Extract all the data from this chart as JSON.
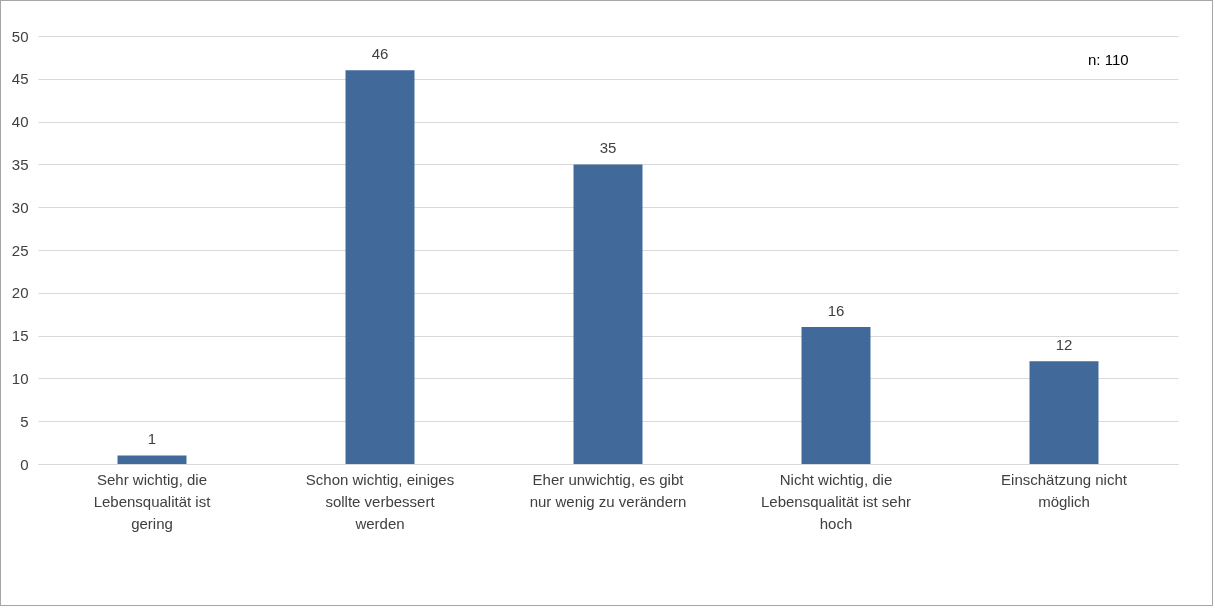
{
  "chart_data": {
    "type": "bar",
    "categories": [
      "Sehr wichtig, die Lebensqualität ist gering",
      "Schon wichtig, einiges sollte verbessert werden",
      "Eher unwichtig, es gibt nur wenig zu verändern",
      "Nicht wichtig, die Lebensqualität ist sehr hoch",
      "Einschätzung nicht möglich"
    ],
    "values": [
      1,
      46,
      35,
      16,
      12
    ],
    "color": "#416a9b",
    "ylim": [
      0,
      50
    ],
    "yticks": [
      0,
      5,
      10,
      15,
      20,
      25,
      30,
      35,
      40,
      45,
      50
    ],
    "grid": "y",
    "data_labels": true,
    "annotations": [
      "n: 110"
    ]
  }
}
